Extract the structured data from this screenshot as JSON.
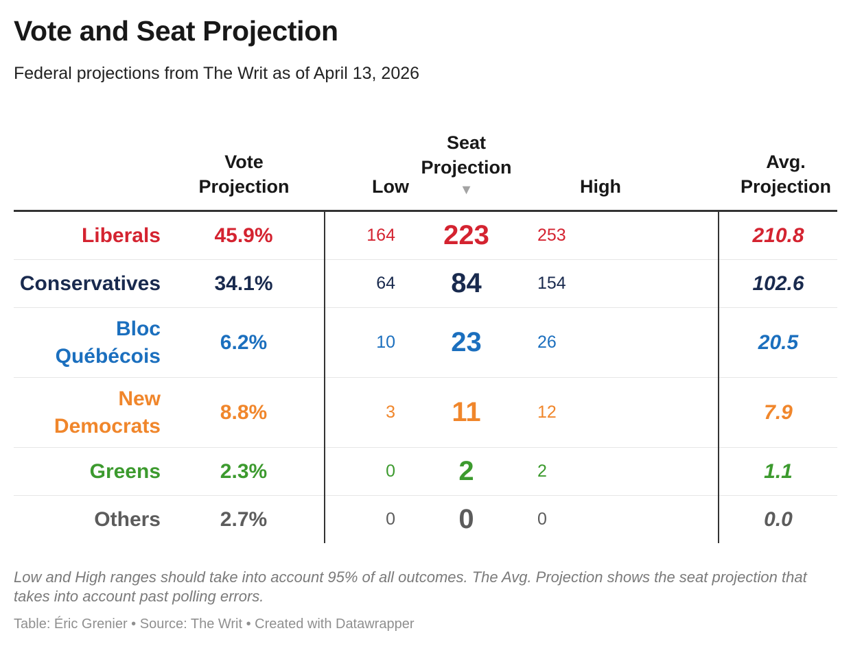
{
  "title": "Vote and Seat Projection",
  "subtitle": "Federal projections from The Writ as of April 13, 2026",
  "chart_data": {
    "type": "table",
    "columns": [
      "",
      "Vote Projection",
      "Low",
      "Seat Projection",
      "High",
      "Avg. Projection"
    ],
    "header": {
      "party": "",
      "vote": "Vote Projection",
      "low": "Low",
      "seat": "Seat Projection",
      "seat_sort_icon": "sort-descending-triangle",
      "high": "High",
      "avg": "Avg. Projection"
    },
    "rows": [
      {
        "party": "Liberals",
        "vote": "45.9%",
        "low": "164",
        "seat": "223",
        "high": "253",
        "avg": "210.8",
        "color": "#d42330"
      },
      {
        "party": "Conservatives",
        "vote": "34.1%",
        "low": "64",
        "seat": "84",
        "high": "154",
        "avg": "102.6",
        "color": "#192a4e"
      },
      {
        "party": "Bloc Québécois",
        "vote": "6.2%",
        "low": "10",
        "seat": "23",
        "high": "26",
        "avg": "20.5",
        "color": "#1b6fbe"
      },
      {
        "party": "New Democrats",
        "vote": "8.8%",
        "low": "3",
        "seat": "11",
        "high": "12",
        "avg": "7.9",
        "color": "#f0862b"
      },
      {
        "party": "Greens",
        "vote": "2.3%",
        "low": "0",
        "seat": "2",
        "high": "2",
        "avg": "1.1",
        "color": "#3c9a2e"
      },
      {
        "party": "Others",
        "vote": "2.7%",
        "low": "0",
        "seat": "0",
        "high": "0",
        "avg": "0.0",
        "color": "#5c5c5c"
      }
    ],
    "sorted_by": "Seat Projection",
    "sort_order": "descending"
  },
  "notes": "Low and High ranges should take into account 95% of all outcomes. The Avg. Projection shows the seat projection that takes into account past polling errors.",
  "credit": "Table: Éric Grenier • Source: The Writ • Created with Datawrapper"
}
